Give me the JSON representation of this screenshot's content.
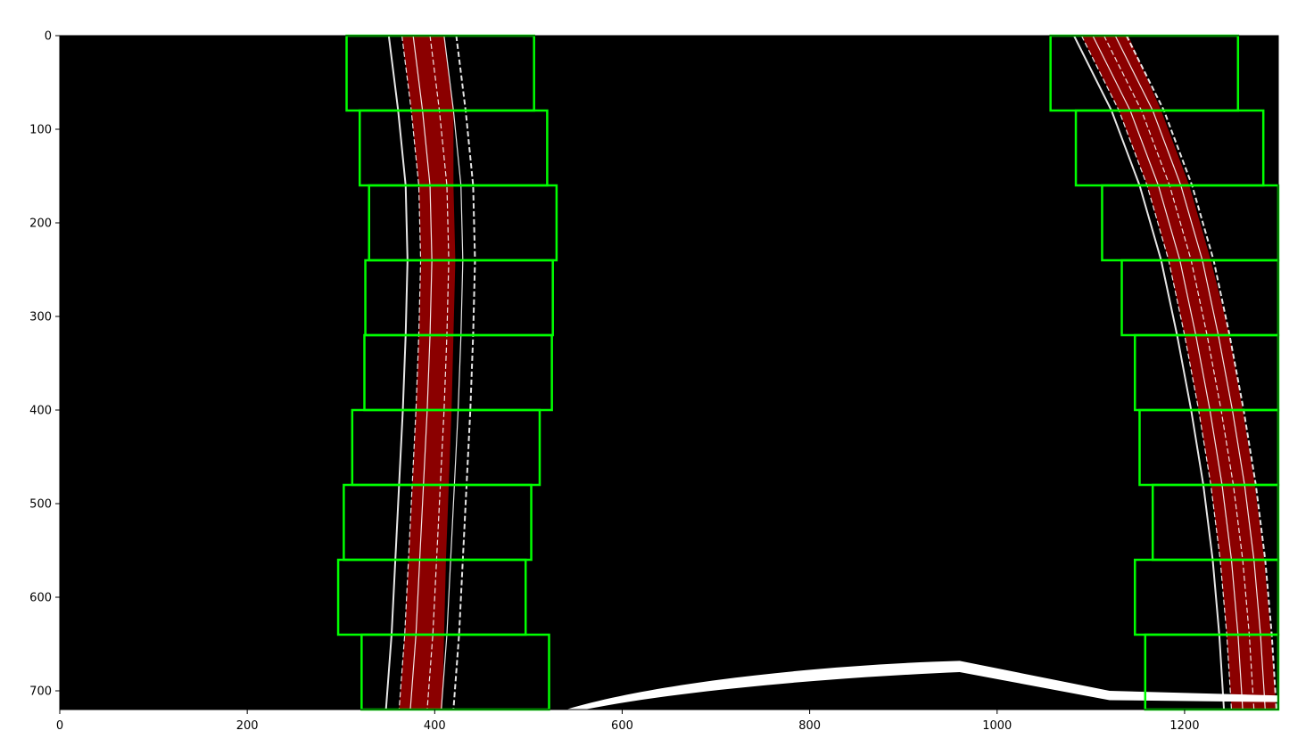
{
  "chart_data": {
    "type": "image-overlay",
    "title": "",
    "xlabel": "",
    "ylabel": "",
    "xlim": [
      0,
      1300
    ],
    "ylim": [
      720,
      0
    ],
    "x_ticks": [
      0,
      200,
      400,
      600,
      800,
      1000,
      1200
    ],
    "y_ticks": [
      0,
      100,
      200,
      300,
      400,
      500,
      600,
      700
    ],
    "grid": false,
    "background": "#000000",
    "colors": {
      "window": "#00ff00",
      "lane_fill": "#8b0000",
      "edges": "#ffffff"
    },
    "sliding_windows": {
      "left": [
        {
          "x0": 306,
          "x1": 506,
          "y0": 0,
          "y1": 80
        },
        {
          "x0": 320,
          "x1": 520,
          "y0": 80,
          "y1": 160
        },
        {
          "x0": 330,
          "x1": 530,
          "y0": 160,
          "y1": 240
        },
        {
          "x0": 326,
          "x1": 526,
          "y0": 240,
          "y1": 320
        },
        {
          "x0": 325,
          "x1": 525,
          "y0": 320,
          "y1": 400
        },
        {
          "x0": 312,
          "x1": 512,
          "y0": 400,
          "y1": 480
        },
        {
          "x0": 303,
          "x1": 503,
          "y0": 480,
          "y1": 560
        },
        {
          "x0": 297,
          "x1": 497,
          "y0": 560,
          "y1": 640
        },
        {
          "x0": 322,
          "x1": 522,
          "y0": 640,
          "y1": 720
        }
      ],
      "right": [
        {
          "x0": 1057,
          "x1": 1257,
          "y0": 0,
          "y1": 80
        },
        {
          "x0": 1084,
          "x1": 1284,
          "y0": 80,
          "y1": 160
        },
        {
          "x0": 1112,
          "x1": 1312,
          "y0": 160,
          "y1": 240
        },
        {
          "x0": 1133,
          "x1": 1333,
          "y0": 240,
          "y1": 320
        },
        {
          "x0": 1147,
          "x1": 1347,
          "y0": 320,
          "y1": 400
        },
        {
          "x0": 1152,
          "x1": 1352,
          "y0": 400,
          "y1": 480
        },
        {
          "x0": 1166,
          "x1": 1366,
          "y0": 480,
          "y1": 560
        },
        {
          "x0": 1147,
          "x1": 1347,
          "y0": 560,
          "y1": 640
        },
        {
          "x0": 1158,
          "x1": 1358,
          "y0": 640,
          "y1": 720
        }
      ]
    },
    "lane_pixels": {
      "left": [
        {
          "y": 0,
          "x0": 365,
          "x1": 410
        },
        {
          "y": 80,
          "x0": 375,
          "x1": 420
        },
        {
          "y": 160,
          "x0": 383,
          "x1": 420
        },
        {
          "y": 240,
          "x0": 385,
          "x1": 422
        },
        {
          "y": 320,
          "x0": 383,
          "x1": 420
        },
        {
          "y": 400,
          "x0": 380,
          "x1": 418
        },
        {
          "y": 480,
          "x0": 376,
          "x1": 415
        },
        {
          "y": 560,
          "x0": 372,
          "x1": 412
        },
        {
          "y": 640,
          "x0": 368,
          "x1": 410
        },
        {
          "y": 720,
          "x0": 362,
          "x1": 408
        }
      ],
      "right": [
        {
          "y": 0,
          "x0": 1090,
          "x1": 1140
        },
        {
          "y": 80,
          "x0": 1130,
          "x1": 1175
        },
        {
          "y": 160,
          "x0": 1160,
          "x1": 1205
        },
        {
          "y": 240,
          "x0": 1183,
          "x1": 1228
        },
        {
          "y": 320,
          "x0": 1200,
          "x1": 1248
        },
        {
          "y": 400,
          "x0": 1215,
          "x1": 1262
        },
        {
          "y": 480,
          "x0": 1228,
          "x1": 1275
        },
        {
          "y": 560,
          "x0": 1238,
          "x1": 1285
        },
        {
          "y": 640,
          "x0": 1245,
          "x1": 1292
        },
        {
          "y": 720,
          "x0": 1250,
          "x1": 1298
        }
      ]
    }
  }
}
